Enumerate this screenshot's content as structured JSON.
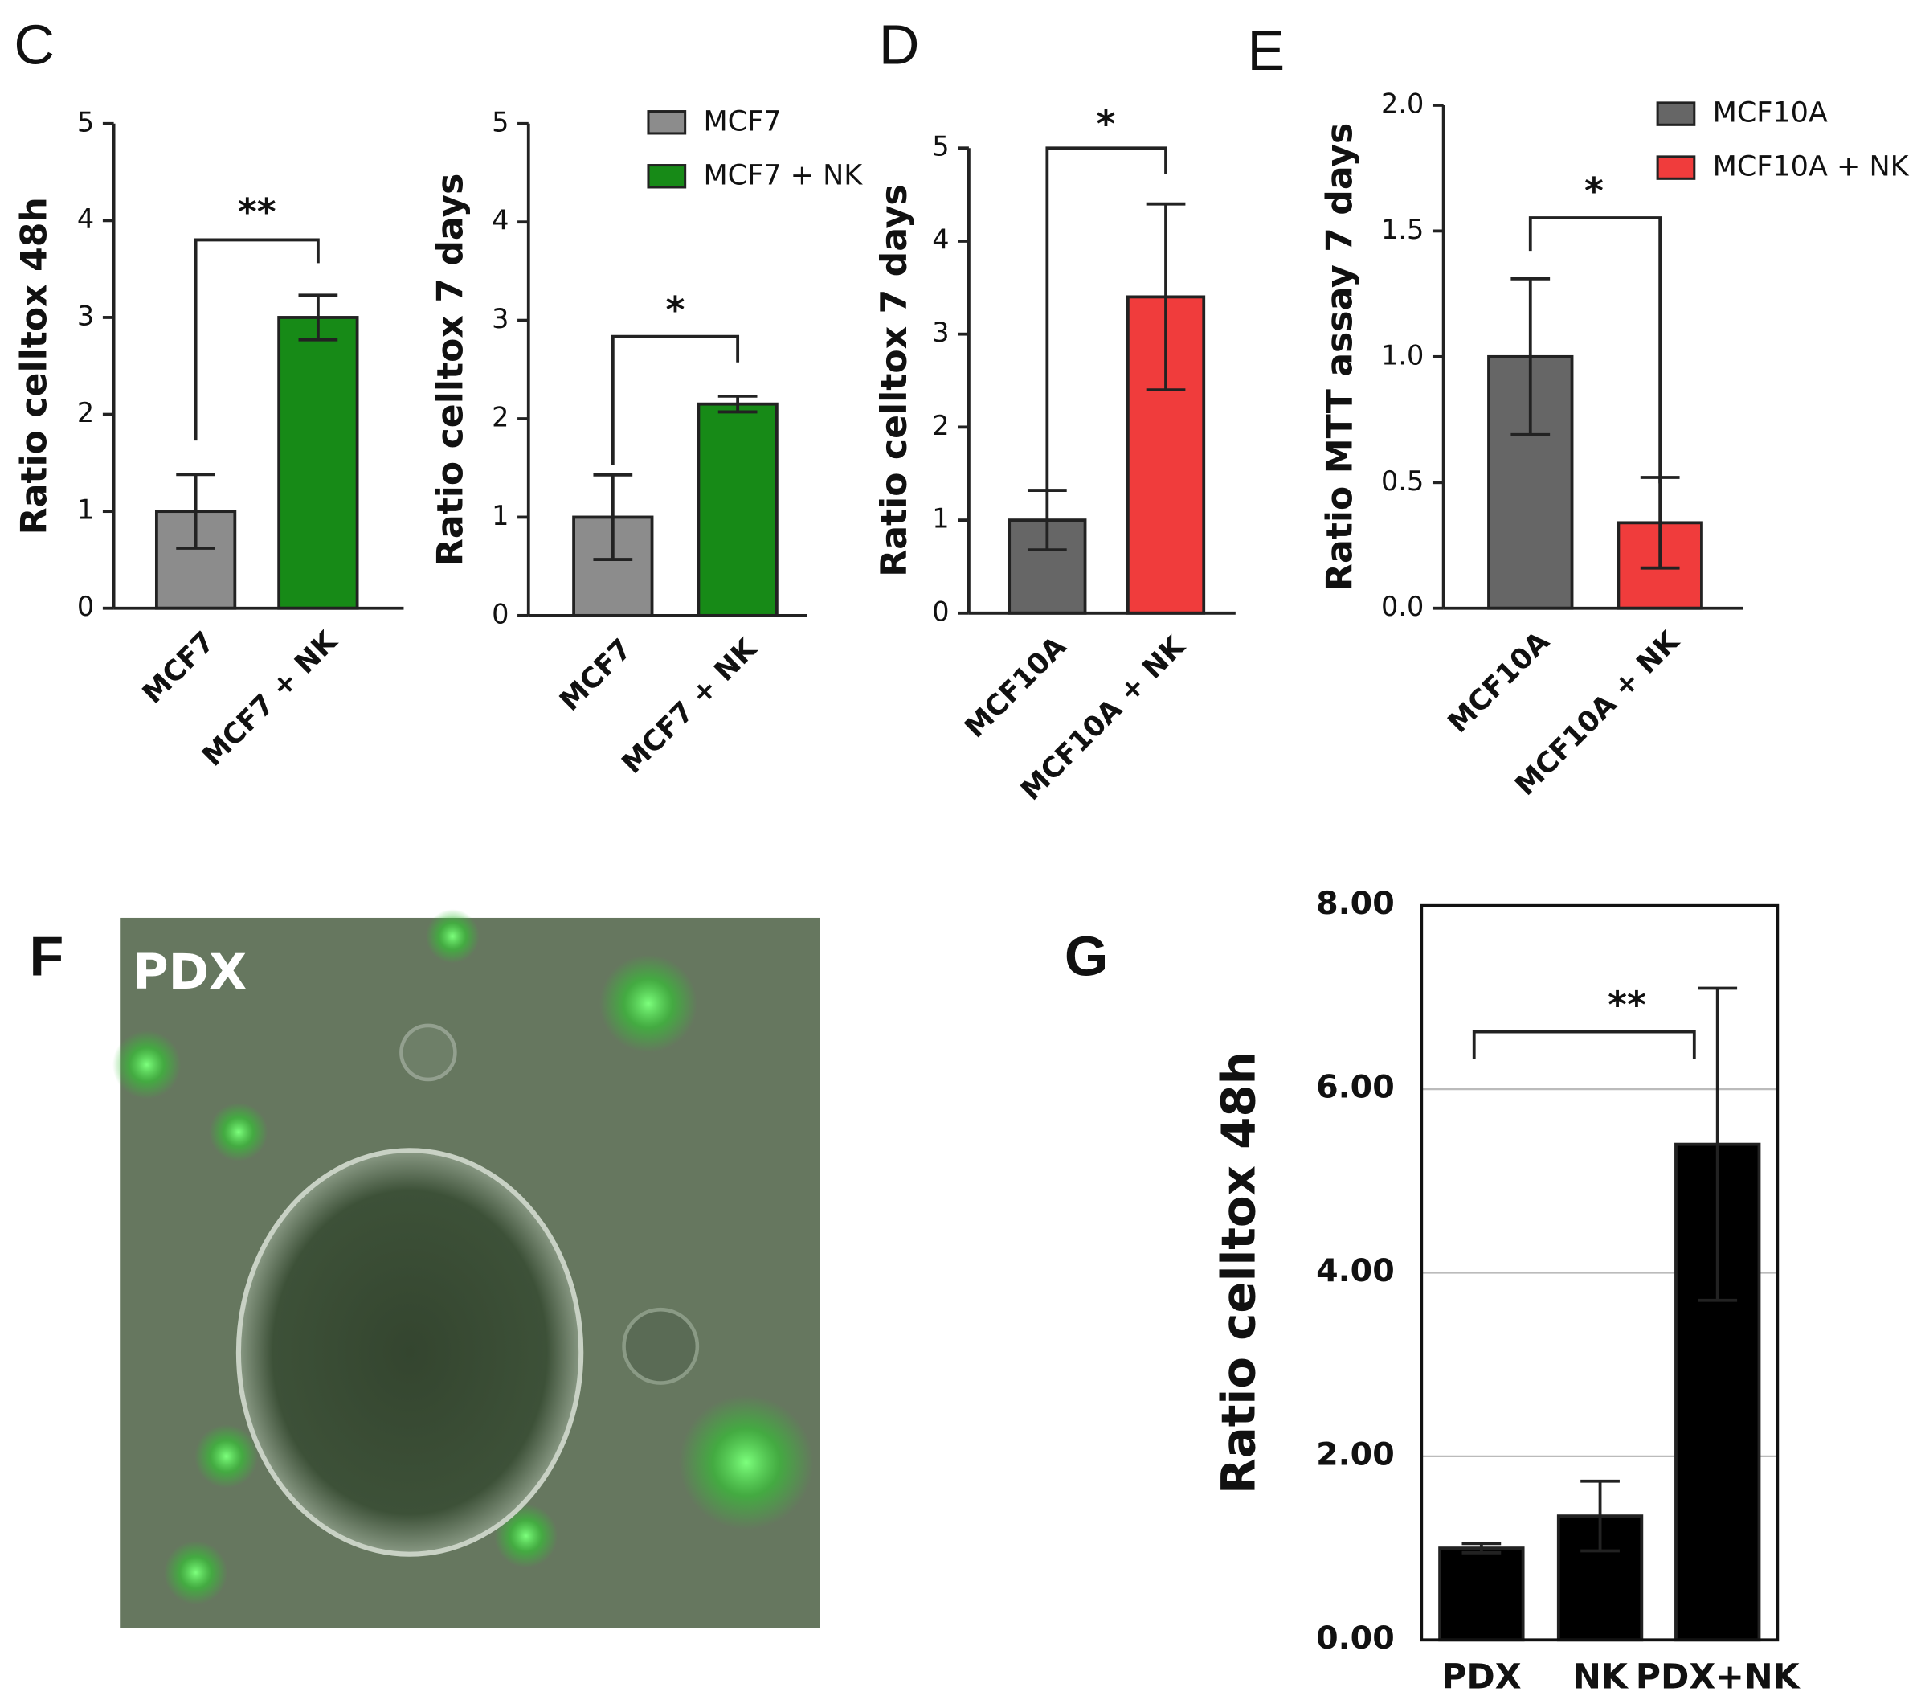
{
  "chart_data": [
    {
      "type": "bar",
      "panel": "C",
      "ylabel": "Ratio celltox 48h",
      "categories": [
        "MCF7",
        "MCF7 + NK"
      ],
      "values": [
        1.0,
        3.0
      ],
      "errors": [
        0.38,
        0.23
      ],
      "colors": [
        "#8c8c8c",
        "#178a17"
      ],
      "ylim": [
        0,
        5
      ],
      "yticks": [
        0,
        1,
        2,
        3,
        4,
        5
      ],
      "significance": "**"
    },
    {
      "type": "bar",
      "ylabel": "Ratio celltox 7 days",
      "categories": [
        "MCF7",
        "MCF7 + NK"
      ],
      "values": [
        1.0,
        2.15
      ],
      "errors": [
        0.43,
        0.08
      ],
      "colors": [
        "#8c8c8c",
        "#178a17"
      ],
      "legend": [
        "MCF7",
        "MCF7 + NK"
      ],
      "ylim": [
        0,
        5
      ],
      "yticks": [
        0,
        1,
        2,
        3,
        4,
        5
      ],
      "significance": "*"
    },
    {
      "type": "bar",
      "panel": "D",
      "ylabel": "Ratio celltox 7 days",
      "categories": [
        "MCF10A",
        "MCF10A + NK"
      ],
      "values": [
        1.0,
        3.4
      ],
      "errors": [
        0.32,
        1.0
      ],
      "colors": [
        "#666666",
        "#f03c3c"
      ],
      "ylim": [
        0,
        5
      ],
      "yticks": [
        0,
        1,
        2,
        3,
        4,
        5
      ],
      "significance": "*"
    },
    {
      "type": "bar",
      "panel": "E",
      "ylabel": "Ratio MTT assay 7 days",
      "categories": [
        "MCF10A",
        "MCF10A + NK"
      ],
      "values": [
        1.0,
        0.34
      ],
      "errors": [
        0.31,
        0.18
      ],
      "colors": [
        "#666666",
        "#f03c3c"
      ],
      "legend": [
        "MCF10A",
        "MCF10A + NK"
      ],
      "ylim": [
        0,
        2
      ],
      "yticks": [
        {
          "value": 0,
          "label": "0.0"
        },
        0.5,
        {
          "value": 1,
          "label": "1.0"
        },
        1.5,
        {
          "value": 2,
          "label": "2.0"
        }
      ],
      "significance": "*"
    },
    {
      "type": "bar",
      "panel": "G",
      "ylabel": "Ratio celltox 48h",
      "categories": [
        "PDX",
        "NK",
        "PDX+NK"
      ],
      "values": [
        1.0,
        1.35,
        5.4
      ],
      "errors": [
        0.05,
        0.38,
        1.7
      ],
      "colors": [
        "#000000",
        "#000000",
        "#000000"
      ],
      "ylim": [
        0,
        8
      ],
      "yticks": [
        {
          "value": 0,
          "label": "0.00"
        },
        {
          "value": 2,
          "label": "2.00"
        },
        {
          "value": 4,
          "label": "4.00"
        },
        {
          "value": 6,
          "label": "6.00"
        },
        {
          "value": 8,
          "label": "8.00"
        }
      ],
      "grid": true,
      "significance": "**"
    }
  ],
  "image": {
    "panel": "F",
    "label": "PDX"
  }
}
